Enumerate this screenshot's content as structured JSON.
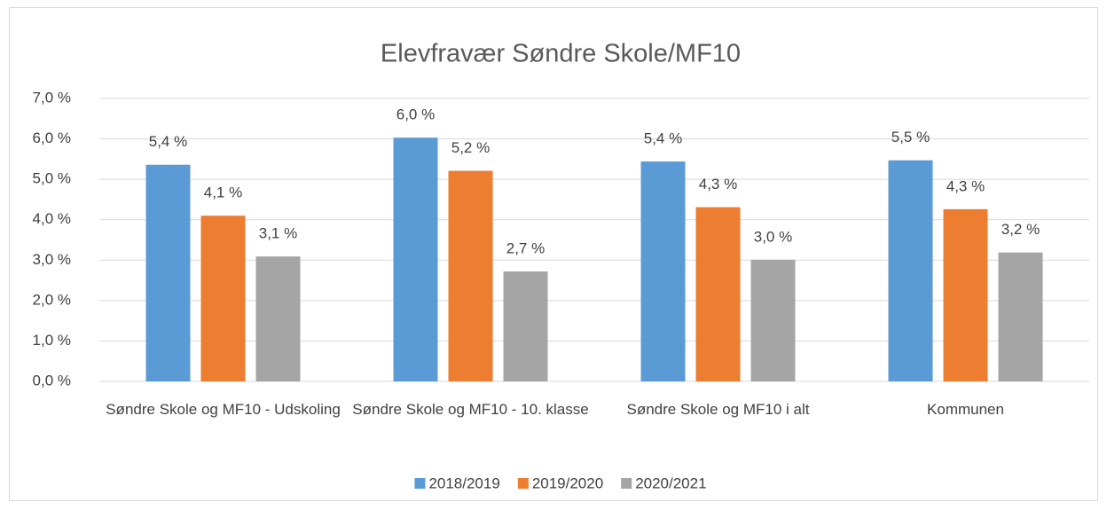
{
  "chart_data": {
    "type": "bar",
    "title": "Elevfravær Søndre Skole/MF10",
    "categories": [
      "Søndre Skole og MF10 - Udskoling",
      "Søndre Skole og MF10 - 10. klasse",
      "Søndre Skole og MF10 i alt",
      "Kommunen"
    ],
    "series": [
      {
        "name": "2018/2019",
        "color": "#5b9bd5",
        "values": [
          5.36,
          6.03,
          5.44,
          5.47
        ],
        "value_labels": [
          "5,4 %",
          "6,0 %",
          "5,4 %",
          "5,5 %"
        ]
      },
      {
        "name": "2019/2020",
        "color": "#ed7d31",
        "values": [
          4.1,
          5.21,
          4.31,
          4.26
        ],
        "value_labels": [
          "4,1 %",
          "5,2 %",
          "4,3 %",
          "4,3 %"
        ]
      },
      {
        "name": "2020/2021",
        "color": "#a5a5a5",
        "values": [
          3.09,
          2.72,
          3.01,
          3.19
        ],
        "value_labels": [
          "3,1 %",
          "2,7 %",
          "3,0 %",
          "3,2 %"
        ]
      }
    ],
    "ylim": [
      0,
      7
    ],
    "yticks": [
      {
        "value": 0,
        "label": "0,0 %"
      },
      {
        "value": 1,
        "label": "1,0 %"
      },
      {
        "value": 2,
        "label": "2,0 %"
      },
      {
        "value": 3,
        "label": "3,0 %"
      },
      {
        "value": 4,
        "label": "4,0 %"
      },
      {
        "value": 5,
        "label": "5,0 %"
      },
      {
        "value": 6,
        "label": "6,0 %"
      },
      {
        "value": 7,
        "label": "7,0 %"
      }
    ],
    "grid": true,
    "legend": "bottom"
  }
}
